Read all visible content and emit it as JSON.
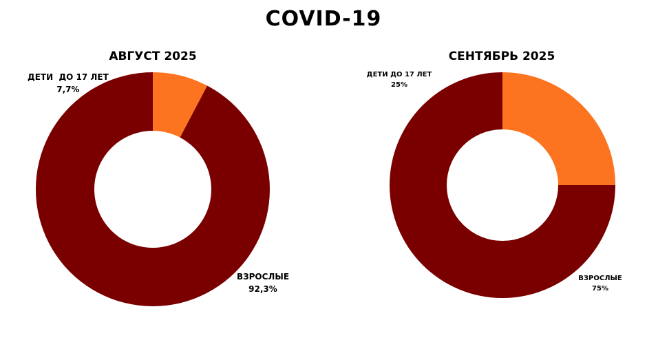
{
  "title": "COVID-19",
  "colors": {
    "adults": "#7a0000",
    "children": "#fc7420",
    "background": "#ffffff"
  },
  "chart_data": [
    {
      "type": "pie",
      "title": "АВГУСТ 2025",
      "slices": [
        {
          "label": "ДЕТИ  ДО 17 ЛЕТ",
          "value": 7.7,
          "value_text": "7,7%",
          "color": "#fc7420"
        },
        {
          "label": "ВЗРОСЛЫЕ",
          "value": 92.3,
          "value_text": "92,3%",
          "color": "#7a0000"
        }
      ]
    },
    {
      "type": "pie",
      "title": "СЕНТЯБРЬ 2025",
      "slices": [
        {
          "label": "ДЕТИ ДО 17 ЛЕТ",
          "value": 25,
          "value_text": "25%",
          "color": "#fc7420"
        },
        {
          "label": "ВЗРОСЛЫЕ",
          "value": 75,
          "value_text": "75%",
          "color": "#7a0000"
        }
      ]
    }
  ]
}
